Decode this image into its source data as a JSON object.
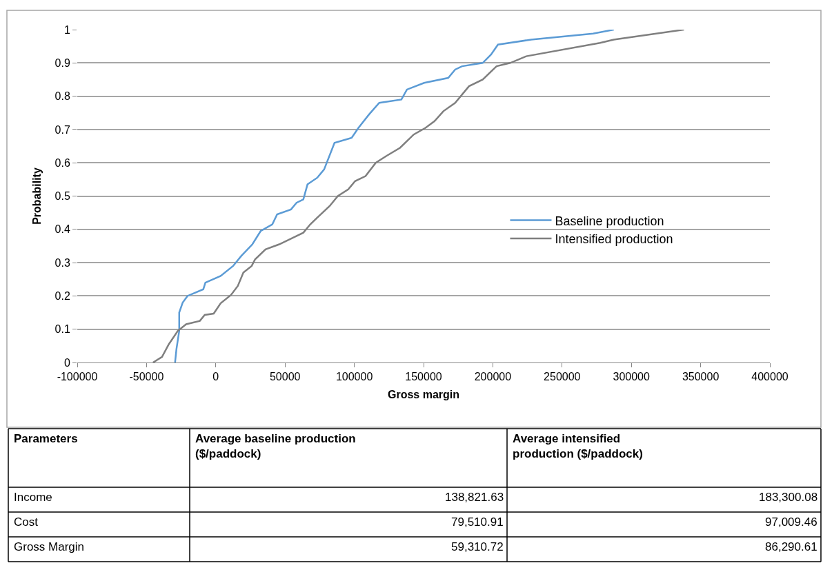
{
  "chart_data": [
    {
      "type": "line",
      "xlabel": "Gross margin",
      "ylabel": "Probability",
      "xlim": [
        -100000,
        400000
      ],
      "xticks": [
        -100000,
        -50000,
        0,
        50000,
        100000,
        150000,
        200000,
        250000,
        300000,
        350000,
        400000
      ],
      "ylim": [
        0,
        1
      ],
      "yticks": [
        0,
        0.1,
        0.2,
        0.3,
        0.4,
        0.5,
        0.6,
        0.7,
        0.8,
        0.9,
        1
      ],
      "grid": "y",
      "legend": "right",
      "marker": "none",
      "line_style": "solid",
      "series": [
        {
          "name": "Baseline production",
          "color": "#5b9bd5",
          "x": [
            -29400,
            -28400,
            -26400,
            -26400,
            -23900,
            -20400,
            -9000,
            -7500,
            3500,
            12500,
            18400,
            26400,
            32400,
            40800,
            44300,
            54300,
            58300,
            63200,
            66200,
            73200,
            78200,
            85700,
            98100,
            103000,
            110600,
            118000,
            134000,
            138000,
            150400,
            167800,
            172800,
            177800,
            192700,
            198700,
            203700,
            227600,
            272400,
            287300
          ],
          "values": [
            0,
            0.04,
            0.095,
            0.15,
            0.18,
            0.2,
            0.22,
            0.24,
            0.26,
            0.29,
            0.32,
            0.355,
            0.395,
            0.415,
            0.445,
            0.46,
            0.48,
            0.49,
            0.535,
            0.555,
            0.58,
            0.66,
            0.675,
            0.705,
            0.745,
            0.78,
            0.79,
            0.82,
            0.84,
            0.855,
            0.88,
            0.89,
            0.9,
            0.925,
            0.955,
            0.97,
            0.988,
            1
          ]
        },
        {
          "name": "Intensified production",
          "color": "#7f7f7f",
          "x": [
            -45300,
            -38800,
            -33900,
            -27400,
            -21400,
            -11500,
            -8000,
            -1500,
            3500,
            11000,
            15900,
            19900,
            25900,
            28400,
            35900,
            45800,
            55800,
            63200,
            68200,
            73200,
            82200,
            88100,
            95600,
            100600,
            108100,
            115500,
            123000,
            133000,
            142900,
            151400,
            157900,
            164300,
            172800,
            182800,
            192700,
            202700,
            212600,
            224100,
            277400,
            287300,
            338000
          ],
          "values": [
            0,
            0.017,
            0.055,
            0.095,
            0.115,
            0.125,
            0.143,
            0.147,
            0.178,
            0.203,
            0.23,
            0.27,
            0.29,
            0.31,
            0.34,
            0.355,
            0.375,
            0.39,
            0.415,
            0.435,
            0.47,
            0.5,
            0.52,
            0.545,
            0.56,
            0.6,
            0.62,
            0.645,
            0.685,
            0.705,
            0.725,
            0.755,
            0.78,
            0.83,
            0.85,
            0.89,
            0.9,
            0.92,
            0.96,
            0.97,
            1
          ]
        }
      ]
    },
    {
      "type": "other",
      "annotations": [
        "Parameters",
        "Average baseline production ($/paddock)",
        "Average intensified production ($/paddock)",
        "Income",
        "138,821.63",
        "183,300.08",
        "Cost",
        "79,510.91",
        "97,009.46",
        "Gross Margin",
        "59,310.72",
        "86,290.61"
      ]
    }
  ]
}
